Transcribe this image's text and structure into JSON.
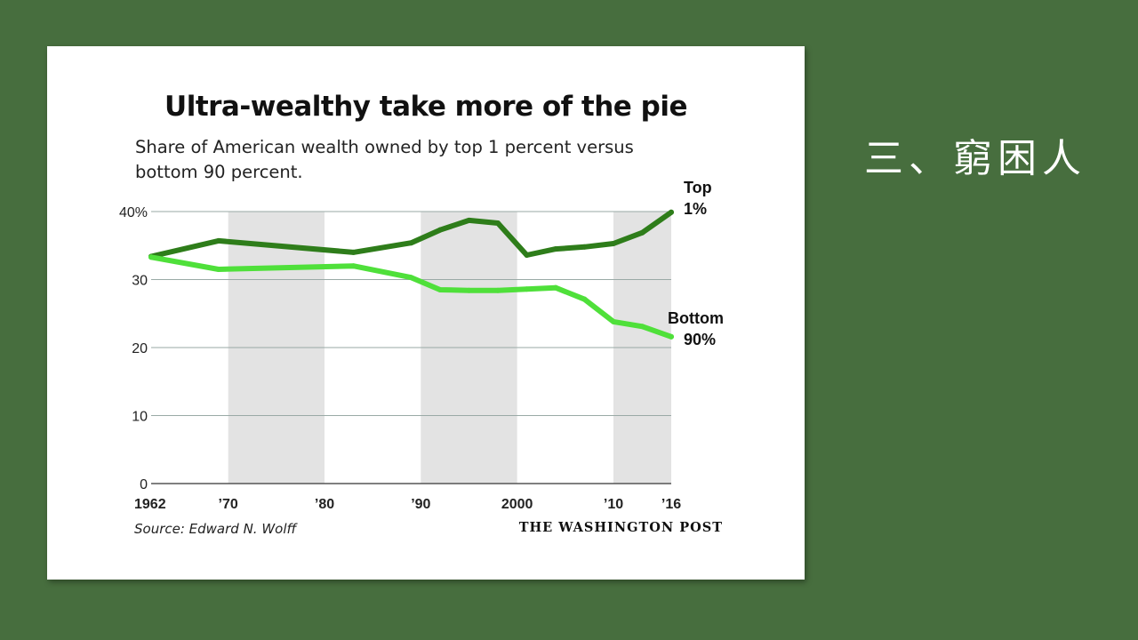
{
  "slide": {
    "heading": "三、窮困人"
  },
  "chart_data": {
    "type": "line",
    "title": "Ultra-wealthy take more of the pie",
    "subtitle_lines": [
      "Share of American wealth owned by top 1 percent versus",
      "bottom 90 percent."
    ],
    "source": "Source: Edward N. Wolff",
    "credit": "THE WASHINGTON POST",
    "xlim": [
      1962,
      2016
    ],
    "ylim": [
      0,
      40
    ],
    "x_ticks": [
      {
        "value": 1962,
        "label": "1962"
      },
      {
        "value": 1970,
        "label": "’70"
      },
      {
        "value": 1980,
        "label": "’80"
      },
      {
        "value": 1990,
        "label": "’90"
      },
      {
        "value": 2000,
        "label": "2000"
      },
      {
        "value": 2010,
        "label": "’10"
      },
      {
        "value": 2016,
        "label": "’16"
      }
    ],
    "y_ticks": [
      {
        "value": 40,
        "label": "40%"
      },
      {
        "value": 30,
        "label": "30"
      },
      {
        "value": 20,
        "label": "20"
      },
      {
        "value": 10,
        "label": "10"
      },
      {
        "value": 0,
        "label": "0"
      }
    ],
    "shaded_decades": [
      [
        1970,
        1980
      ],
      [
        1990,
        2000
      ],
      [
        2010,
        2016
      ]
    ],
    "grid": true,
    "series": [
      {
        "name_lines": [
          "Top",
          "1%"
        ],
        "color": "#2e7d1a",
        "x": [
          1962,
          1969,
          1983,
          1989,
          1992,
          1995,
          1998,
          2001,
          2004,
          2007,
          2010,
          2013,
          2016
        ],
        "values": [
          33.4,
          35.7,
          34.0,
          35.4,
          37.3,
          38.7,
          38.3,
          33.6,
          34.5,
          34.8,
          35.3,
          36.9,
          39.9
        ]
      },
      {
        "name_lines": [
          "Bottom",
          "90%"
        ],
        "color": "#4fe03a",
        "x": [
          1962,
          1969,
          1983,
          1989,
          1992,
          1995,
          1998,
          2001,
          2004,
          2007,
          2010,
          2013,
          2016
        ],
        "values": [
          33.3,
          31.5,
          32.0,
          30.3,
          28.5,
          28.4,
          28.4,
          28.6,
          28.8,
          27.1,
          23.8,
          23.1,
          21.6
        ]
      }
    ]
  }
}
